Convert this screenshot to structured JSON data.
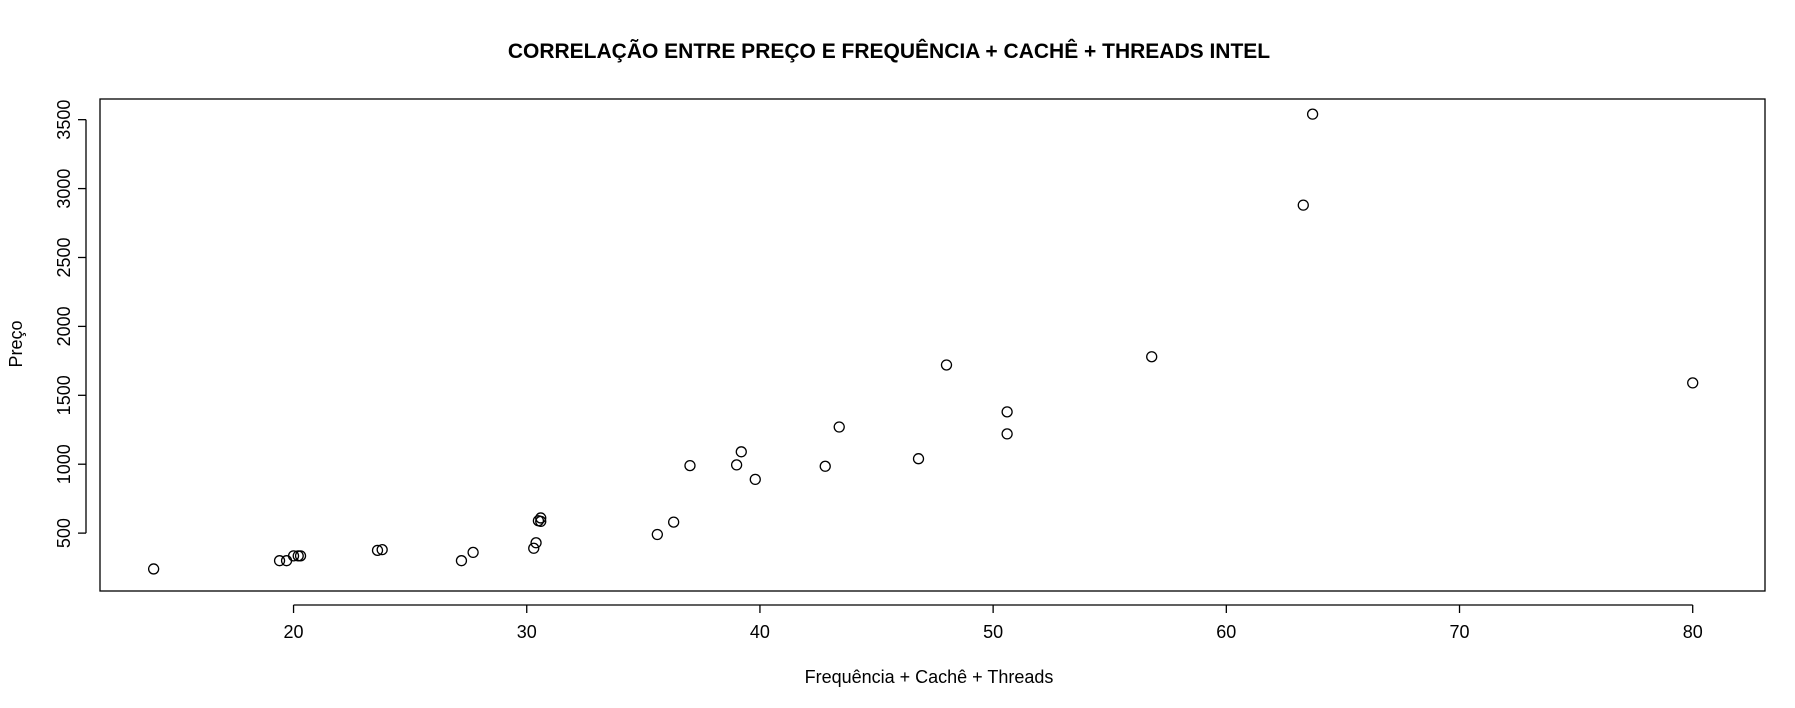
{
  "chart_data": {
    "type": "scatter",
    "title": "CORRELAÇÃO ENTRE PREÇO E  FREQUÊNCIA + CACHÊ + THREADS INTEL",
    "xlabel": "Frequência + Cachê + Threads",
    "ylabel": "Preço",
    "xlim": [
      11.7,
      83.1
    ],
    "ylim": [
      80,
      3650
    ],
    "x_ticks": [
      20,
      30,
      40,
      50,
      60,
      70,
      80
    ],
    "y_ticks": [
      500,
      1000,
      1500,
      2000,
      2500,
      3000,
      3500
    ],
    "grid": false,
    "marker": "open-circle",
    "x": [
      14.0,
      19.4,
      19.7,
      20.0,
      20.2,
      20.3,
      23.6,
      23.8,
      27.2,
      27.7,
      30.3,
      30.4,
      30.5,
      30.6,
      30.6,
      35.6,
      36.3,
      37.0,
      39.0,
      39.2,
      39.8,
      42.8,
      43.4,
      46.8,
      48.0,
      50.6,
      50.6,
      56.8,
      63.3,
      63.7,
      80.0
    ],
    "y": [
      240,
      300,
      300,
      335,
      335,
      335,
      375,
      380,
      300,
      360,
      390,
      430,
      590,
      585,
      610,
      490,
      580,
      990,
      995,
      1090,
      890,
      985,
      1270,
      1040,
      1720,
      1380,
      1220,
      1780,
      2880,
      3540,
      1590
    ]
  }
}
